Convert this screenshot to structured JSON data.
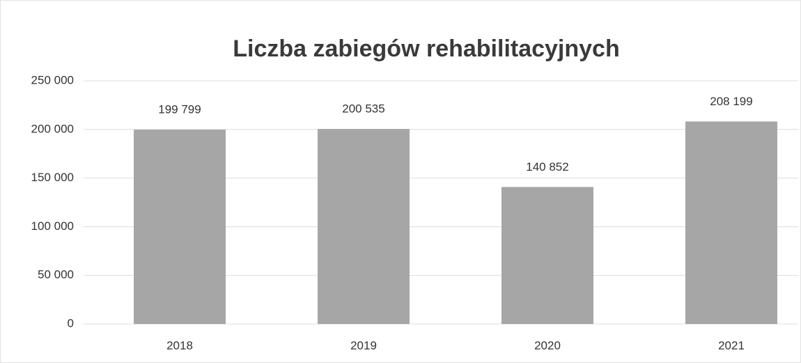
{
  "chart_data": {
    "type": "bar",
    "title": "Liczba zabiegów rehabilitacyjnych",
    "categories": [
      "2018",
      "2019",
      "2020",
      "2021"
    ],
    "values": [
      199799,
      200535,
      140852,
      208199
    ],
    "value_labels": [
      "199 799",
      "200 535",
      "140 852",
      "208 199"
    ],
    "color": "#a6a6a6",
    "ylim": [
      0,
      250000
    ],
    "yticks": [
      {
        "value": 0,
        "label": "0"
      },
      {
        "value": 50000,
        "label": "50 000"
      },
      {
        "value": 100000,
        "label": "100 000"
      },
      {
        "value": 150000,
        "label": "150 000"
      },
      {
        "value": 200000,
        "label": "200 000"
      },
      {
        "value": 250000,
        "label": "250 000"
      }
    ],
    "grid": true
  }
}
